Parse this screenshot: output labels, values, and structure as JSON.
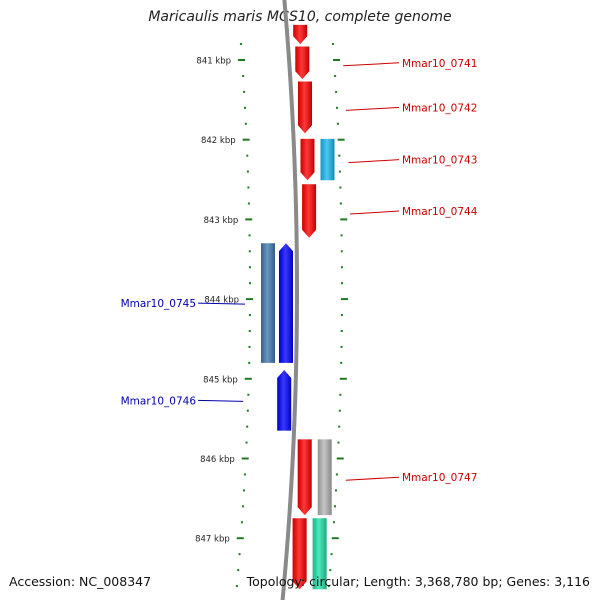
{
  "title": "Maricaulis maris MCS10, complete genome",
  "footer": {
    "accession": "Accession: NC_008347",
    "summary": "Topology: circular; Length: 3,368,780 bp; Genes: 3,116"
  },
  "colors": {
    "backbone": "#8a8a8a",
    "tick": "#1f7a1f",
    "forward_label": "#cc0000",
    "reverse_label": "#0000aa",
    "cds_forward": "#ff0000",
    "cds_reverse": "#0000ff",
    "rna": "#1ab8ee",
    "steel": "#3f7ab0",
    "grey": "#b4b4b4",
    "teal": "#22e0a8"
  },
  "chart_data": {
    "type": "genome-map",
    "kbp_unit": "kbp",
    "view_range_bp": [
      840580,
      847620
    ],
    "major_ticks": [
      {
        "bp": 841000,
        "label": "841 kbp"
      },
      {
        "bp": 842000,
        "label": "842 kbp"
      },
      {
        "bp": 843000,
        "label": "843 kbp"
      },
      {
        "bp": 844000,
        "label": "844 kbp"
      },
      {
        "bp": 845000,
        "label": "845 kbp"
      },
      {
        "bp": 846000,
        "label": "846 kbp"
      },
      {
        "bp": 847000,
        "label": "847 kbp"
      }
    ],
    "features": [
      {
        "start": 840560,
        "end": 840800,
        "strand": "+",
        "track": 1,
        "color": "cds_forward",
        "label": ""
      },
      {
        "start": 840830,
        "end": 841240,
        "strand": "+",
        "track": 1,
        "color": "cds_forward",
        "label": "Mmar10_0741"
      },
      {
        "start": 841270,
        "end": 841920,
        "strand": "+",
        "track": 1,
        "color": "cds_forward",
        "label": "Mmar10_0742"
      },
      {
        "start": 841990,
        "end": 842510,
        "strand": "+",
        "track": 1,
        "color": "cds_forward",
        "label": "Mmar10_0743"
      },
      {
        "start": 841990,
        "end": 842510,
        "strand": "+",
        "track": 2,
        "color": "rna",
        "label": ""
      },
      {
        "start": 842560,
        "end": 843230,
        "strand": "+",
        "track": 1,
        "color": "cds_forward",
        "label": "Mmar10_0744"
      },
      {
        "start": 843300,
        "end": 844800,
        "strand": "-",
        "track": 2,
        "color": "steel",
        "label": ""
      },
      {
        "start": 843300,
        "end": 844800,
        "strand": "-",
        "track": 1,
        "color": "cds_reverse",
        "label": "Mmar10_0745"
      },
      {
        "start": 844890,
        "end": 845650,
        "strand": "-",
        "track": 1,
        "color": "cds_reverse",
        "label": "Mmar10_0746"
      },
      {
        "start": 845760,
        "end": 846710,
        "strand": "+",
        "track": 1,
        "color": "cds_forward",
        "label": "Mmar10_0747"
      },
      {
        "start": 845760,
        "end": 846710,
        "strand": "+",
        "track": 2,
        "color": "grey",
        "label": ""
      },
      {
        "start": 846750,
        "end": 847640,
        "strand": "+",
        "track": 1,
        "color": "cds_forward",
        "label": ""
      },
      {
        "start": 846750,
        "end": 847640,
        "strand": "+",
        "track": 2,
        "color": "teal",
        "label": ""
      }
    ]
  }
}
